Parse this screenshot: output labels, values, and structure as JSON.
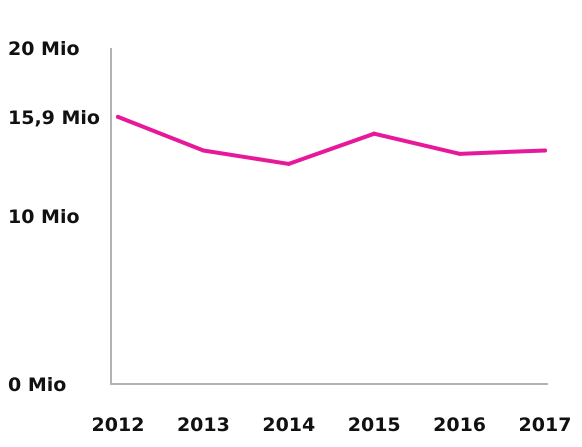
{
  "chart_data": {
    "type": "line",
    "title": "",
    "xlabel": "",
    "ylabel": "",
    "x": [
      "2012",
      "2013",
      "2014",
      "2015",
      "2016",
      "2017"
    ],
    "series": [
      {
        "name": "",
        "values": [
          15.9,
          13.9,
          13.1,
          14.9,
          13.7,
          13.9
        ]
      }
    ],
    "ylim": [
      0,
      20
    ],
    "yticks": [
      {
        "value": 20,
        "label": "20 Mio"
      },
      {
        "value": 15.9,
        "label": "15,9 Mio"
      },
      {
        "value": 10,
        "label": "10 Mio"
      },
      {
        "value": 0,
        "label": "0 Mio"
      }
    ],
    "grid": false,
    "colors": {
      "line": "#e6199a",
      "axis": "#b3b3b3",
      "text": "#111111"
    }
  }
}
